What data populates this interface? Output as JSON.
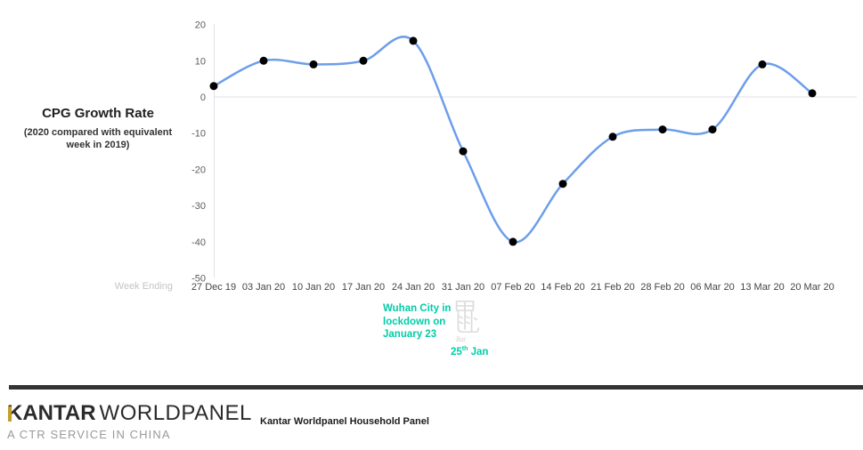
{
  "chart_data": {
    "type": "line",
    "title": "CPG Growth Rate",
    "subtitle": "(2020 compared with equivalent\nweek in 2019)",
    "x_axis_label": "Week Ending",
    "categories": [
      "27 Dec 19",
      "03 Jan 20",
      "10 Jan 20",
      "17 Jan 20",
      "24 Jan 20",
      "31 Jan 20",
      "07 Feb 20",
      "14 Feb 20",
      "21 Feb 20",
      "28 Feb 20",
      "06 Mar 20",
      "13 Mar 20",
      "20 Mar 20"
    ],
    "values": [
      3,
      10,
      9,
      10,
      15.5,
      -15,
      -40,
      -24,
      -11,
      -9,
      -9,
      9,
      1
    ],
    "y_ticks": [
      20,
      10,
      0,
      -10,
      -20,
      -30,
      -40,
      -50
    ],
    "ylim": [
      -50,
      20
    ],
    "smooth": true,
    "grid": "zero-line-only",
    "legend_position": "none",
    "line_color": "#6D9EEB",
    "marker_color": "#000000",
    "axis_color": "#E6DFE9"
  },
  "annotations": {
    "lockdown_note": "Wuhan City in\nlockdown on\nJanuary 23",
    "cny_date": {
      "day": "25",
      "ordinal": "th",
      "rest": " Jan"
    },
    "zodiac": {
      "char": "鼠",
      "label": "Rat"
    },
    "accent_color": "#00CDA6",
    "zodiac_color": "#DBDBDB"
  },
  "footer": {
    "brand_primary": "KANTAR",
    "brand_secondary": "WORLDPANEL",
    "brand_tagline": "A CTR SERVICE IN CHINA",
    "brand_accent_color": "#C3A02B",
    "source_note": "Kantar Worldpanel Household Panel"
  }
}
